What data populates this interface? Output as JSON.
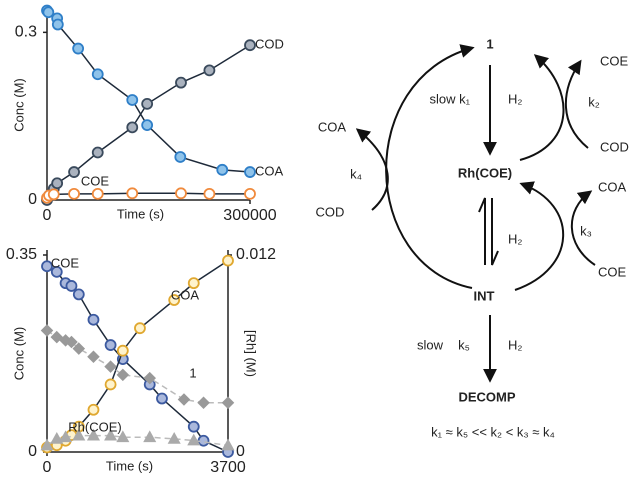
{
  "chart_data": [
    {
      "type": "scatter",
      "xlabel": "Time (s)",
      "ylabel": "Conc (M)",
      "xlim": [
        0,
        300000
      ],
      "ylim": [
        0,
        0.34
      ],
      "xticks": [
        0,
        300000
      ],
      "yticks": [
        0,
        0.3
      ],
      "series": [
        {
          "name": "COD",
          "color": "#2f7fc8",
          "fill": "#8fc3ea",
          "marker": "circle",
          "line": "solid",
          "x": [
            0,
            2000,
            15000,
            16000,
            46000,
            75000,
            126000,
            148000,
            197000,
            259000,
            300000
          ],
          "values": [
            0.339,
            0.336,
            0.325,
            0.314,
            0.271,
            0.225,
            0.179,
            0.134,
            0.077,
            0.054,
            0.05
          ]
        },
        {
          "name": "COA",
          "color": "#3a4a5c",
          "fill": "#aab2be",
          "marker": "circle",
          "line": "solid",
          "x": [
            0,
            3000,
            10000,
            15000,
            40000,
            75000,
            126000,
            148000,
            198000,
            240000,
            300000
          ],
          "values": [
            0,
            0.008,
            0.02,
            0.03,
            0.05,
            0.085,
            0.13,
            0.172,
            0.21,
            0.232,
            0.277
          ]
        },
        {
          "name": "COE",
          "color": "#f08a3c",
          "fill": "#ffffff",
          "marker": "circle",
          "line": "solid",
          "x": [
            0,
            3000,
            10000,
            40000,
            75000,
            126000,
            198000,
            240000,
            300000
          ],
          "values": [
            0.004,
            0.008,
            0.01,
            0.011,
            0.011,
            0.012,
            0.012,
            0.011,
            0.011
          ]
        }
      ]
    },
    {
      "type": "scatter",
      "xlabel": "Time (s)",
      "ylabel": "Conc (M)",
      "y2label": "[Rh] (M)",
      "xlim": [
        0,
        3700
      ],
      "ylim": [
        0,
        0.35
      ],
      "y2lim": [
        0,
        0.012
      ],
      "xticks": [
        0,
        3700
      ],
      "yticks": [
        0,
        0.35
      ],
      "y2ticks": [
        0,
        0.012
      ],
      "series": [
        {
          "name": "COE",
          "color": "#3c5aa0",
          "fill": "#aab8dc",
          "marker": "circle",
          "line": "solid",
          "x": [
            0,
            200,
            380,
            500,
            650,
            950,
            1300,
            1550,
            2100,
            2350,
            3000,
            3200,
            3700
          ],
          "values": [
            0.33,
            0.32,
            0.3,
            0.295,
            0.28,
            0.235,
            0.19,
            0.165,
            0.12,
            0.095,
            0.045,
            0.02,
            0.0
          ]
        },
        {
          "name": "COA",
          "color": "#e0a830",
          "fill": "#fff3cc",
          "marker": "circle",
          "line": "solid",
          "x": [
            0,
            200,
            380,
            500,
            650,
            950,
            1300,
            1550,
            1900,
            2600,
            3000,
            3700
          ],
          "values": [
            0.008,
            0.012,
            0.02,
            0.03,
            0.045,
            0.075,
            0.12,
            0.18,
            0.22,
            0.27,
            0.3,
            0.34
          ]
        },
        {
          "name": "1",
          "color": "#999999",
          "fill": "#999999",
          "marker": "diamond",
          "line": "dashed",
          "axis": "y2",
          "x": [
            0,
            200,
            380,
            500,
            650,
            950,
            1300,
            1550,
            2100,
            2800,
            3200,
            3700
          ],
          "values": [
            0.0074,
            0.007,
            0.0068,
            0.0067,
            0.0063,
            0.0058,
            0.0052,
            0.0047,
            0.0045,
            0.0032,
            0.003,
            0.003
          ]
        },
        {
          "name": "Rh(COE)",
          "color": "#aaaaaa",
          "fill": "#aaaaaa",
          "marker": "triangle",
          "line": "dashed",
          "axis": "y2",
          "x": [
            0,
            200,
            380,
            650,
            950,
            1300,
            1550,
            2100,
            2600,
            3000,
            3700
          ],
          "values": [
            0.0004,
            0.0008,
            0.0009,
            0.001,
            0.001,
            0.001,
            0.0009,
            0.0009,
            0.0008,
            0.0007,
            0.0004
          ]
        }
      ]
    }
  ],
  "diagram": {
    "nodes": [
      "1",
      "Rh(COE)",
      "INT",
      "DECOMP"
    ],
    "k1_label": "slow k₁",
    "k1_h2": "H₂",
    "k2_label": "k₂",
    "k2_in": "COD",
    "k2_out": "COE",
    "k3_label": "k₃",
    "k3_in": "COE",
    "k3_out": "COA",
    "k4_label": "k₄",
    "k4_in": "COD",
    "k4_out": "COA",
    "eq_h2": "H₂",
    "k5_slow": "slow",
    "k5_label": "k₅",
    "k5_h2": "H₂",
    "relation": "k₁ ≈ k₅ << k₂ < k₃ ≈ k₄"
  }
}
